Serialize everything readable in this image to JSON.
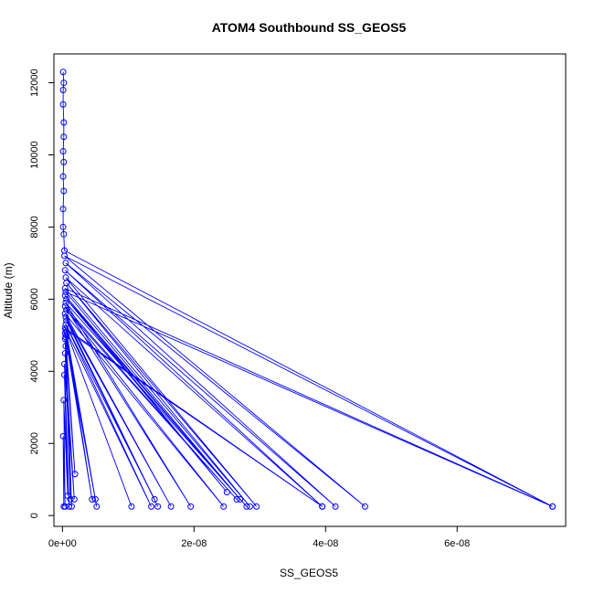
{
  "chart_data": {
    "type": "line",
    "title": "ATOM4 Southbound SS_GEOS5",
    "xlabel": "SS_GEOS5",
    "ylabel": "Altitude (m)",
    "xlim": [
      -1.3e-09,
      7.65e-08
    ],
    "ylim": [
      -300,
      12800
    ],
    "x_ticks": [
      0,
      2e-08,
      4e-08,
      6e-08
    ],
    "x_tick_labels": [
      "0e+00",
      "2e-08",
      "4e-08",
      "6e-08"
    ],
    "y_ticks": [
      0,
      2000,
      4000,
      6000,
      8000,
      10000,
      12000
    ],
    "y_tick_labels": [
      "0",
      "2000",
      "4000",
      "6000",
      "8000",
      "10000",
      "12000"
    ],
    "markers": "open circles",
    "series": [
      {
        "color": "#0000ff",
        "points": [
          [
            1e-10,
            12300
          ],
          [
            2e-10,
            12000
          ],
          [
            1e-10,
            11800
          ],
          [
            1e-10,
            11400
          ],
          [
            2e-10,
            10900
          ],
          [
            2e-10,
            10500
          ],
          [
            1e-10,
            10100
          ],
          [
            2e-10,
            9800
          ],
          [
            1e-10,
            9400
          ],
          [
            2e-10,
            9000
          ],
          [
            1e-10,
            8500
          ],
          [
            1e-10,
            8000
          ],
          [
            2e-10,
            7800
          ],
          [
            3e-10,
            7350
          ],
          [
            7.45e-08,
            250
          ],
          [
            3e-10,
            7200
          ],
          [
            4.6e-08,
            250
          ],
          [
            5e-10,
            7000
          ],
          [
            4.15e-08,
            250
          ],
          [
            4e-10,
            6800
          ],
          [
            3.95e-08,
            250
          ],
          [
            5e-10,
            6600
          ],
          [
            2.95e-08,
            250
          ],
          [
            6e-10,
            6450
          ],
          [
            2.85e-08,
            250
          ],
          [
            4e-10,
            6300
          ],
          [
            7.45e-08,
            250
          ],
          [
            5e-10,
            6200
          ],
          [
            2.7e-08,
            450
          ],
          [
            4e-10,
            6100
          ],
          [
            2.5e-08,
            650
          ],
          [
            6e-10,
            6000
          ],
          [
            2.8e-08,
            250
          ],
          [
            5e-10,
            5900
          ],
          [
            1.95e-08,
            250
          ],
          [
            4e-10,
            5800
          ],
          [
            2.65e-08,
            450
          ],
          [
            6e-10,
            5700
          ],
          [
            2.45e-08,
            250
          ],
          [
            4e-10,
            5600
          ],
          [
            1.65e-08,
            250
          ],
          [
            5e-10,
            5500
          ],
          [
            1.45e-08,
            250
          ],
          [
            6e-10,
            5400
          ],
          [
            1.4e-08,
            450
          ],
          [
            5e-10,
            5300
          ],
          [
            1.35e-08,
            250
          ],
          [
            4e-10,
            5200
          ],
          [
            3.95e-08,
            250
          ],
          [
            5e-10,
            5150
          ],
          [
            1.05e-08,
            250
          ],
          [
            6e-10,
            5100
          ],
          [
            5e-09,
            450
          ],
          [
            4e-10,
            5050
          ],
          [
            4.5e-09,
            450
          ],
          [
            6e-10,
            5000
          ],
          [
            5.2e-09,
            250
          ],
          [
            5e-10,
            4950
          ],
          [
            1.9e-09,
            1150
          ],
          [
            4e-10,
            4900
          ],
          [
            1.2e-09,
            450
          ],
          [
            5e-10,
            4700
          ],
          [
            1.4e-09,
            250
          ],
          [
            4e-10,
            4500
          ],
          [
            1.8e-09,
            450
          ],
          [
            3e-10,
            4200
          ],
          [
            1e-09,
            250
          ],
          [
            3e-10,
            3900
          ],
          [
            8e-10,
            550
          ],
          [
            2e-10,
            3200
          ],
          [
            4e-10,
            250
          ],
          [
            1e-10,
            2200
          ],
          [
            2e-10,
            250
          ]
        ]
      }
    ]
  }
}
